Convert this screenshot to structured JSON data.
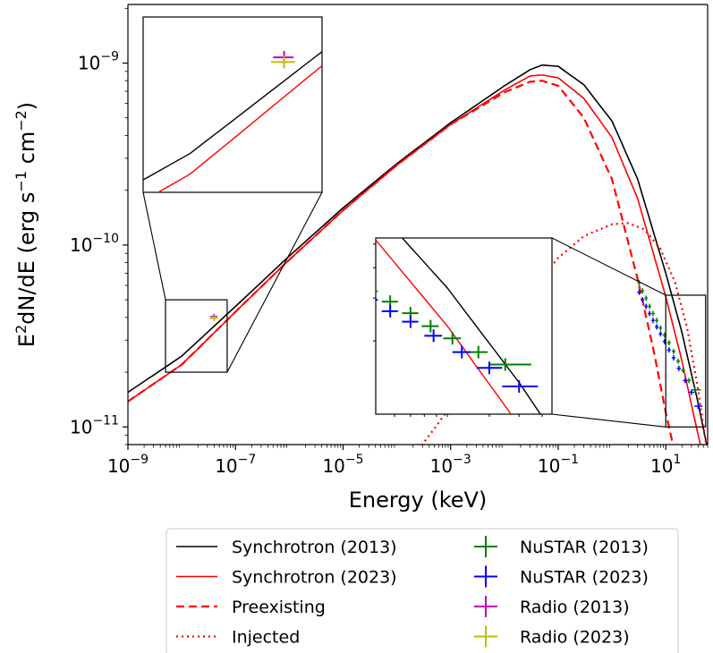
{
  "chart_data": {
    "type": "line",
    "xlabel": "Energy (keV)",
    "ylabel_base": "E",
    "ylabel_sup": "2",
    "ylabel_rest": "dN/dE (erg s",
    "ylabel_unit_sup1": "−1",
    "ylabel_cm": " cm",
    "ylabel_unit_sup2": "−2",
    "ylabel_end": ")",
    "xscale": "log",
    "yscale": "log",
    "xlim": [
      1e-09,
      60
    ],
    "ylim": [
      8e-12,
      2.1e-09
    ],
    "x_ticks": [
      {
        "value": 1e-09,
        "base": "10",
        "exp": "−9"
      },
      {
        "value": 1e-07,
        "base": "10",
        "exp": "−7"
      },
      {
        "value": 1e-05,
        "base": "10",
        "exp": "−5"
      },
      {
        "value": 0.001,
        "base": "10",
        "exp": "−3"
      },
      {
        "value": 0.1,
        "base": "10",
        "exp": "−1"
      },
      {
        "value": 10,
        "base": "10",
        "exp": "1"
      }
    ],
    "y_ticks": [
      {
        "value": 1e-11,
        "base": "10",
        "exp": "−11"
      },
      {
        "value": 1e-10,
        "base": "10",
        "exp": "−10"
      },
      {
        "value": 1e-09,
        "base": "10",
        "exp": "−9"
      }
    ],
    "series": [
      {
        "name": "Synchrotron (2013)",
        "color": "#000000",
        "style": "solid",
        "x": [
          1e-09,
          1e-08,
          1e-07,
          1e-06,
          1e-05,
          0.0001,
          0.001,
          0.01,
          0.03,
          0.05,
          0.1,
          0.3,
          1,
          3,
          10,
          20,
          40,
          60
        ],
        "y": [
          1.55e-11,
          2.45e-11,
          4.6e-11,
          8.7e-11,
          1.6e-10,
          2.8e-10,
          4.7e-10,
          7.5e-10,
          9.2e-10,
          9.75e-10,
          9.6e-10,
          7.6e-10,
          4.8e-10,
          2.3e-10,
          7e-11,
          3.3e-11,
          1.35e-11,
          7.5e-12
        ]
      },
      {
        "name": "Synchrotron (2023)",
        "color": "#ff0000",
        "style": "solid",
        "x": [
          1e-09,
          1e-08,
          1e-07,
          1e-06,
          1e-05,
          0.0001,
          0.001,
          0.01,
          0.03,
          0.05,
          0.1,
          0.3,
          1,
          3,
          10,
          20,
          40,
          60
        ],
        "y": [
          1.38e-11,
          2.2e-11,
          4.3e-11,
          8.3e-11,
          1.55e-10,
          2.75e-10,
          4.6e-10,
          7.1e-10,
          8.5e-10,
          8.6e-10,
          8.3e-10,
          6.4e-10,
          3.9e-10,
          1.8e-10,
          5.2e-11,
          2.3e-11,
          9e-12,
          5.5e-12
        ]
      },
      {
        "name": "Preexisting",
        "color": "#ff0000",
        "style": "dashed",
        "x": [
          1e-09,
          1e-08,
          1e-07,
          1e-06,
          1e-05,
          0.0001,
          0.001,
          0.01,
          0.03,
          0.05,
          0.1,
          0.3,
          1,
          3,
          6,
          10,
          15
        ],
        "y": [
          1.38e-11,
          2.2e-11,
          4.3e-11,
          8.3e-11,
          1.55e-10,
          2.75e-10,
          4.6e-10,
          6.9e-10,
          7.9e-10,
          8e-10,
          7.5e-10,
          5e-10,
          2.3e-10,
          6.5e-11,
          2.6e-11,
          1.2e-11,
          7e-12
        ]
      },
      {
        "name": "Injected",
        "color": "#ff0000",
        "style": "dotted",
        "x": [
          0.00025,
          0.0005,
          0.001,
          0.003,
          0.01,
          0.03,
          0.1,
          0.3,
          1,
          2,
          4,
          8,
          15,
          25,
          40,
          60
        ],
        "y": [
          7.5e-12,
          9.8e-12,
          1.3e-11,
          2.1e-11,
          3.5e-11,
          5.5e-11,
          8.5e-11,
          1.12e-10,
          1.3e-10,
          1.32e-10,
          1.22e-10,
          9.5e-11,
          6.2e-11,
          3.5e-11,
          1.6e-11,
          7e-12
        ]
      }
    ],
    "points": [
      {
        "name": "NuSTAR (2013)",
        "color": "#008000",
        "data": [
          [
            3.2,
            6.2e-11
          ],
          [
            3.7,
            5.6e-11
          ],
          [
            4.3,
            5.1e-11
          ],
          [
            5.0,
            4.6e-11
          ],
          [
            5.8,
            4.2e-11
          ],
          [
            6.8,
            3.85e-11
          ],
          [
            8.0,
            3.5e-11
          ],
          [
            9.5,
            3.2e-11
          ],
          [
            11.5,
            2.9e-11
          ],
          [
            14.0,
            2.6e-11
          ],
          [
            17.0,
            2.3e-11
          ],
          [
            21.0,
            2.05e-11
          ],
          [
            27.0,
            1.8e-11
          ],
          [
            35.0,
            1.6e-11
          ]
        ],
        "xerr": [
          [
            0.25,
            0.25
          ],
          [
            0.28,
            0.28
          ],
          [
            0.3,
            0.3
          ],
          [
            0.35,
            0.35
          ],
          [
            0.4,
            0.4
          ],
          [
            0.5,
            0.5
          ],
          [
            0.6,
            0.6
          ],
          [
            0.7,
            0.7
          ],
          [
            0.9,
            0.9
          ],
          [
            1.1,
            1.1
          ],
          [
            1.4,
            1.4
          ],
          [
            1.8,
            1.8
          ],
          [
            2.5,
            2.5
          ],
          [
            5.0,
            10.0
          ]
        ]
      },
      {
        "name": "NuSTAR (2023)",
        "color": "#0000ff",
        "data": [
          [
            3.2,
            5.5e-11
          ],
          [
            3.7,
            5e-11
          ],
          [
            4.3,
            4.6e-11
          ],
          [
            5.0,
            4.2e-11
          ],
          [
            5.8,
            3.85e-11
          ],
          [
            6.8,
            3.55e-11
          ],
          [
            8.0,
            3.25e-11
          ],
          [
            9.5,
            2.95e-11
          ],
          [
            11.5,
            2.65e-11
          ],
          [
            14.0,
            2.4e-11
          ],
          [
            17.5,
            2.1e-11
          ],
          [
            23.0,
            1.8e-11
          ],
          [
            30.0,
            1.55e-11
          ],
          [
            40.0,
            1.3e-11
          ]
        ],
        "xerr": [
          [
            0.25,
            0.25
          ],
          [
            0.28,
            0.28
          ],
          [
            0.3,
            0.3
          ],
          [
            0.35,
            0.35
          ],
          [
            0.4,
            0.4
          ],
          [
            0.5,
            0.5
          ],
          [
            0.6,
            0.6
          ],
          [
            0.7,
            0.7
          ],
          [
            0.9,
            0.9
          ],
          [
            1.1,
            1.1
          ],
          [
            1.5,
            1.5
          ],
          [
            2.0,
            2.0
          ],
          [
            3.5,
            4.0
          ],
          [
            6.0,
            8.0
          ]
        ]
      },
      {
        "name": "Radio (2013)",
        "color": "#bf00bf",
        "data": [
          [
            4e-08,
            4.05e-11
          ]
        ],
        "xerr": [
          [
            6e-09,
            6e-09
          ]
        ]
      },
      {
        "name": "Radio (2023)",
        "color": "#bfbf00",
        "data": [
          [
            4e-08,
            3.95e-11
          ]
        ],
        "xerr": [
          [
            7e-09,
            7e-09
          ]
        ]
      }
    ],
    "legend": {
      "placement": "lower-center",
      "ncol": 2
    }
  }
}
